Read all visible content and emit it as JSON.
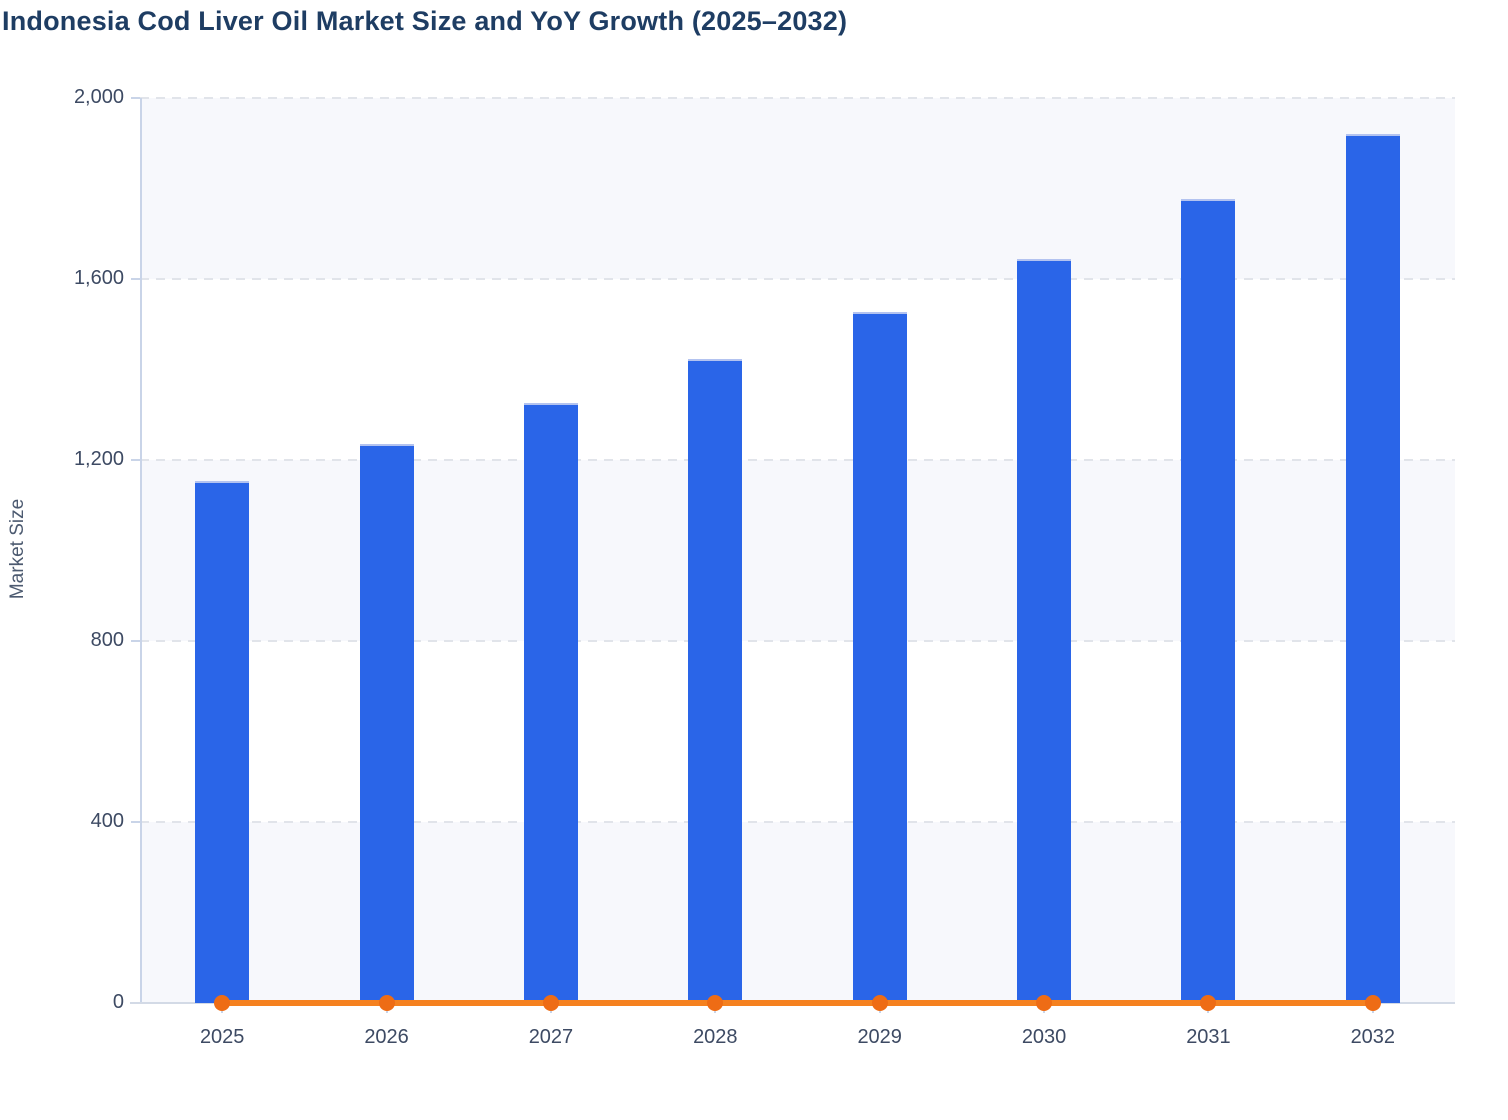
{
  "title": "Indonesia Cod Liver Oil Market Size and YoY Growth (2025–2032)",
  "chart_data": {
    "type": "bar",
    "title": "Indonesia Cod Liver Oil Market Size and YoY Growth (2025–2032)",
    "xlabel": "",
    "ylabel": "Market Size",
    "ylim": [
      0,
      2000
    ],
    "ytick_values": [
      0,
      400,
      800,
      1200,
      1600,
      2000
    ],
    "ytick_labels": [
      "0",
      "400",
      "800",
      "1,200",
      "1,600",
      "2,000"
    ],
    "categories": [
      "2025",
      "2026",
      "2027",
      "2028",
      "2029",
      "2030",
      "2031",
      "2032"
    ],
    "series": [
      {
        "name": "Market Size",
        "type": "bar",
        "color": "#2a65e8",
        "values": [
          1154,
          1235,
          1326,
          1423,
          1527,
          1644,
          1777,
          1920
        ]
      },
      {
        "name": "YoY Growth",
        "type": "line",
        "color": "#f5811f",
        "marker_color": "#ee6c15",
        "values": [
          0,
          0,
          0,
          0,
          0,
          0,
          0,
          0
        ]
      }
    ],
    "grid": "horizontal-dashed",
    "legend": "none",
    "plot_background_bands": [
      "#f7f8fc",
      "#ffffff"
    ]
  },
  "colors": {
    "title": "#1e3d63",
    "axis_text": "#3d4a63",
    "axis_line": "#c9d4e8",
    "gridline": "#e1e4ea",
    "bar": "#2a65e8",
    "bar_top_edge": "#b3c3f0",
    "line": "#f5811f",
    "marker": "#ee6c15",
    "plot_band": "#f7f8fc"
  }
}
